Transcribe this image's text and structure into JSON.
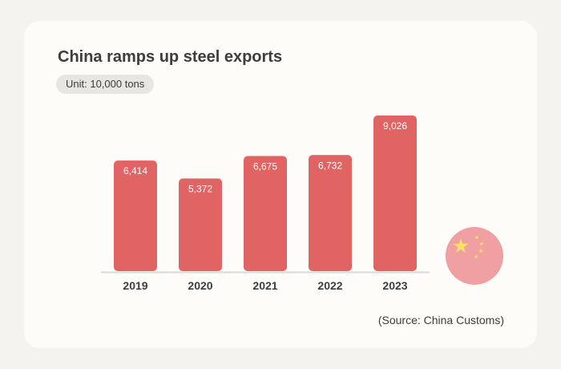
{
  "chart_data": {
    "type": "bar",
    "title": "China ramps up steel exports",
    "unit": "Unit: 10,000 tons",
    "categories": [
      "2019",
      "2020",
      "2021",
      "2022",
      "2023"
    ],
    "values": [
      6414,
      5372,
      6675,
      6732,
      9026
    ],
    "value_labels": [
      "6,414",
      "5,372",
      "6,675",
      "6,732",
      "9,026"
    ],
    "xlabel": "",
    "ylabel": "",
    "ylim": [
      0,
      9026
    ],
    "grid": false,
    "legend": "none",
    "source": "(Source: China Customs)"
  },
  "colors": {
    "bar": "#e06464",
    "flag_circle": "#f0a0a0",
    "star": "#ffe066",
    "axis": "#d9d9d9",
    "text": "#3d3d3d"
  },
  "icons": {
    "flag": "china-flag-icon"
  }
}
